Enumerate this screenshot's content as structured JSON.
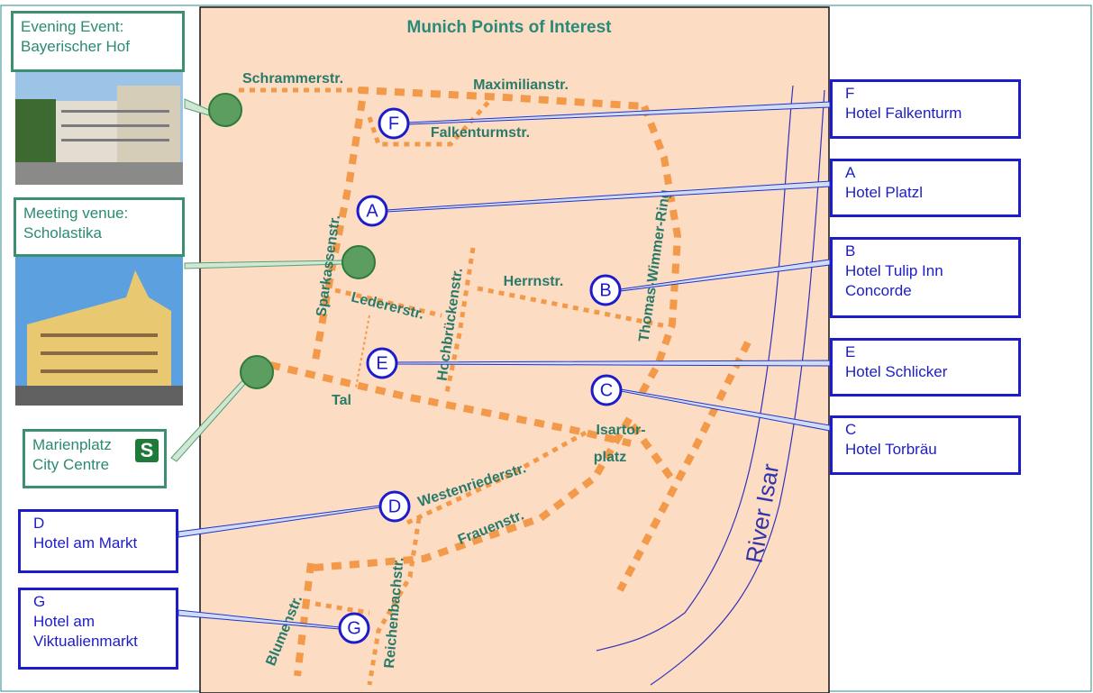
{
  "title": "Munich Points of Interest",
  "venues": [
    {
      "label": "Evening Event: Bayerischer Hof"
    },
    {
      "label": "Meeting venue: Scholastika"
    },
    {
      "label": "Marienplatz City Centre",
      "icon": "S"
    }
  ],
  "hotels": [
    {
      "letter": "F",
      "name": "Hotel Falkenturm"
    },
    {
      "letter": "A",
      "name": "Hotel Platzl"
    },
    {
      "letter": "B",
      "name": "Hotel Tulip Inn Concorde"
    },
    {
      "letter": "E",
      "name": "Hotel Schlicker"
    },
    {
      "letter": "C",
      "name": "Hotel Torbräu"
    },
    {
      "letter": "D",
      "name": "Hotel am Markt"
    },
    {
      "letter": "G",
      "name": "Hotel am Viktualienmarkt"
    }
  ],
  "streets": [
    "Schrammerstr.",
    "Maximilianstr.",
    "Falkenturmstr.",
    "Sparkassenstr.",
    "Thomas-Wimmer-Ring",
    "Herrnstr.",
    "Ledererstr.",
    "Hochbrückenstr.",
    "Tal",
    "Isartor-",
    "platz",
    "Westenriederstr.",
    "Frauenstr.",
    "Reichenbachstr.",
    "Blumenstr.",
    "River Isar"
  ]
}
